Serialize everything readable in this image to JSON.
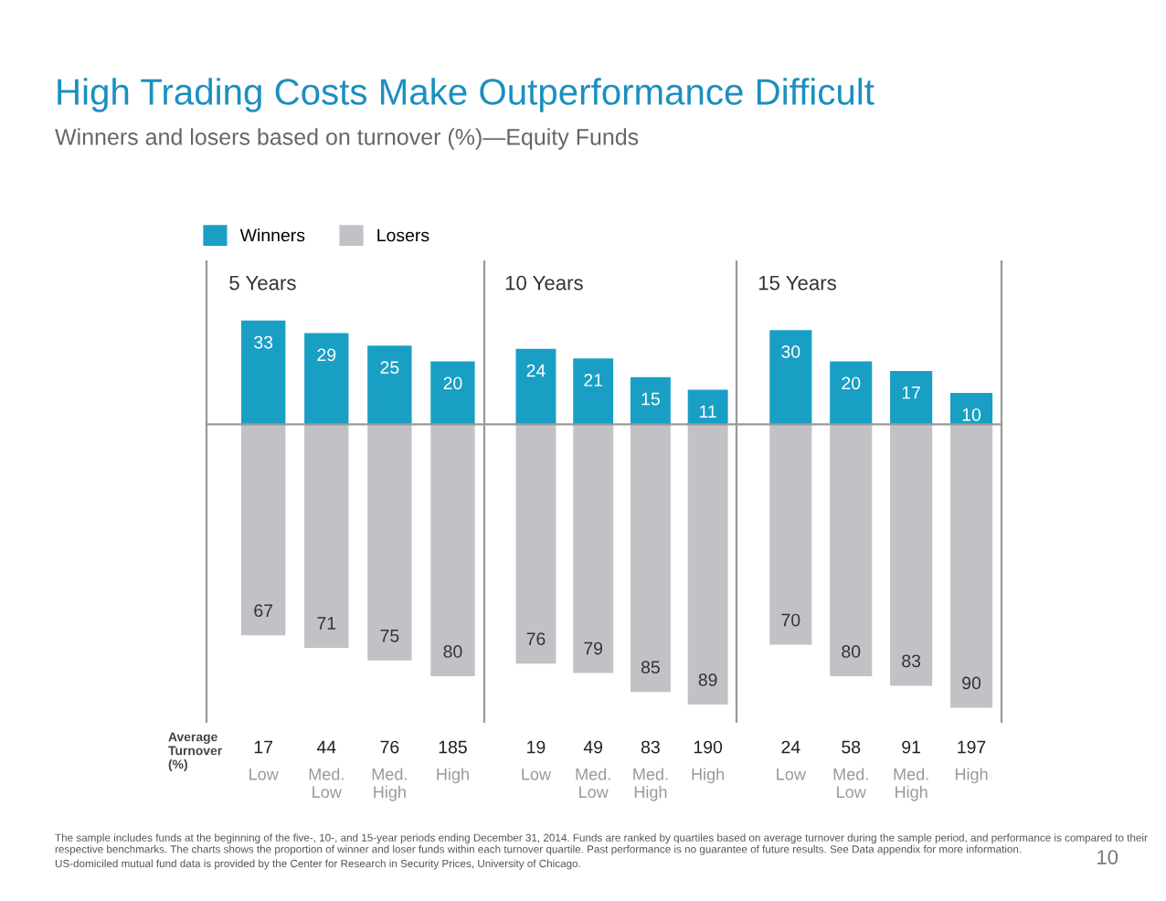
{
  "chart_data": [
    {
      "type": "other",
      "title": "High Trading Costs Make Outperformance Difficult",
      "subtitle": "Winners and losers based on turnover (%)—Equity Funds",
      "annotations": [
        "Average\nTurnover\n(%)",
        "The sample includes funds at the beginning of the five-, 10-, and 15-year periods ending December 31, 2014. Funds are ranked by quartiles based on average turnover during the sample period, and performance is compared to their respective benchmarks. The charts shows the proportion of winner and loser funds within each turnover quartile. Past performance is no guarantee of future results. See Data appendix for more information.",
        "US-domiciled mutual fund data is provided by the Center for Research in Security Prices, University of Chicago.",
        "10"
      ]
    },
    {
      "type": "bar",
      "title": "5 Years",
      "categories": [
        "Low",
        "Med.\nLow",
        "Med.\nHigh",
        "High"
      ],
      "legend": "top left",
      "stacked": true,
      "annotations": [
        "17",
        "44",
        "76",
        "185",
        {
          "text": "67",
          "x": "Low",
          "y": -67
        },
        {
          "text": "71",
          "x": "Med.\nLow",
          "y": -71
        },
        {
          "text": "75",
          "x": "Med.\nHigh",
          "y": -75
        },
        {
          "text": "80",
          "x": "High",
          "y": -80
        }
      ],
      "series": [
        {
          "name": "Winners",
          "color": "#1a9fc4",
          "values": [
            33,
            29,
            25,
            20
          ],
          "value_labels": [
            "33",
            "29",
            "25",
            "20"
          ]
        },
        {
          "name": "Losers",
          "color": "#c2c2c6",
          "values": [
            -67,
            -71,
            -75,
            -80
          ]
        }
      ]
    },
    {
      "type": "bar",
      "title": "10 Years",
      "categories": [
        "Low",
        "Med.\nLow",
        "Med.\nHigh",
        "High"
      ],
      "stacked": true,
      "annotations": [
        "19",
        "49",
        "83",
        "190",
        {
          "text": "76",
          "x": "Low",
          "y": -76
        },
        {
          "text": "79",
          "x": "Med.\nLow",
          "y": -79
        },
        {
          "text": "85",
          "x": "Med.\nHigh",
          "y": -85
        },
        {
          "text": "89",
          "x": "High",
          "y": -89
        }
      ],
      "series": [
        {
          "color": "#1a9fc4",
          "values": [
            24,
            21,
            15,
            11
          ],
          "value_labels": [
            "24",
            "21",
            "15",
            "11"
          ]
        },
        {
          "color": "#c2c2c6",
          "values": [
            -76,
            -79,
            -85,
            -89
          ]
        }
      ]
    },
    {
      "type": "bar",
      "title": "15 Years",
      "categories": [
        "Low",
        "Med.\nLow",
        "Med.\nHigh",
        "High"
      ],
      "stacked": true,
      "annotations": [
        "24",
        "58",
        "91",
        "197",
        {
          "text": "70",
          "x": "Low",
          "y": -70
        },
        {
          "text": "80",
          "x": "Med.\nLow",
          "y": -80
        },
        {
          "text": "83",
          "x": "Med.\nHigh",
          "y": -83
        },
        {
          "text": "90",
          "x": "High",
          "y": -90
        }
      ],
      "series": [
        {
          "color": "#1a9fc4",
          "values": [
            30,
            20,
            17,
            10
          ],
          "value_labels": [
            "30",
            "20",
            "17",
            "10"
          ]
        },
        {
          "color": "#c2c2c6",
          "values": [
            -70,
            -80,
            -83,
            -90
          ]
        }
      ]
    }
  ]
}
